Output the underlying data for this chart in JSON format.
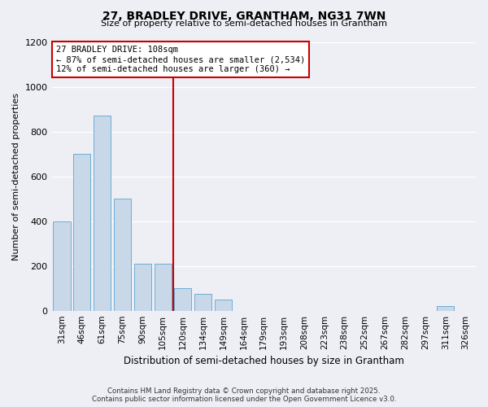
{
  "title1": "27, BRADLEY DRIVE, GRANTHAM, NG31 7WN",
  "title2": "Size of property relative to semi-detached houses in Grantham",
  "xlabel": "Distribution of semi-detached houses by size in Grantham",
  "ylabel": "Number of semi-detached properties",
  "categories": [
    "31sqm",
    "46sqm",
    "61sqm",
    "75sqm",
    "90sqm",
    "105sqm",
    "120sqm",
    "134sqm",
    "149sqm",
    "164sqm",
    "179sqm",
    "193sqm",
    "208sqm",
    "223sqm",
    "238sqm",
    "252sqm",
    "267sqm",
    "282sqm",
    "297sqm",
    "311sqm",
    "326sqm"
  ],
  "values": [
    400,
    700,
    870,
    500,
    210,
    210,
    100,
    75,
    50,
    0,
    0,
    0,
    0,
    0,
    0,
    0,
    0,
    0,
    0,
    20,
    0
  ],
  "bar_color": "#c8d8e8",
  "bar_edge_color": "#6baed6",
  "red_line_x": 5.5,
  "annotation_title": "27 BRADLEY DRIVE: 108sqm",
  "annotation_line1": "← 87% of semi-detached houses are smaller (2,534)",
  "annotation_line2": "12% of semi-detached houses are larger (360) →",
  "annotation_box_color": "#ffffff",
  "annotation_border_color": "#cc0000",
  "ylim": [
    0,
    1200
  ],
  "yticks": [
    0,
    200,
    400,
    600,
    800,
    1000,
    1200
  ],
  "footer1": "Contains HM Land Registry data © Crown copyright and database right 2025.",
  "footer2": "Contains public sector information licensed under the Open Government Licence v3.0.",
  "bg_color": "#eeeef5"
}
